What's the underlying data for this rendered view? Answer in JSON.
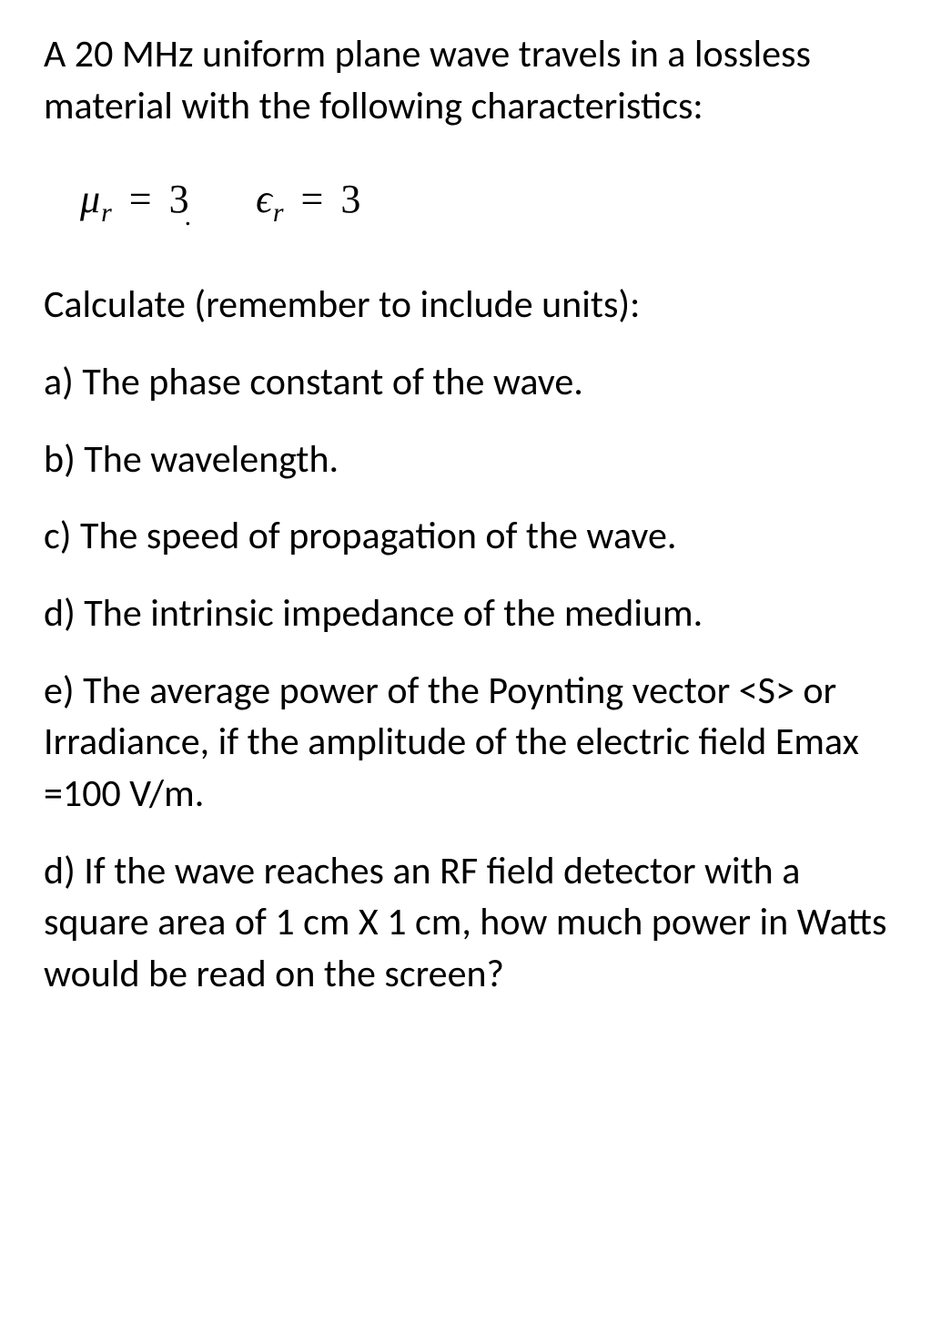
{
  "page": {
    "background_color": "#ffffff",
    "text_color": "#000000",
    "body_font": "Calibri",
    "math_font": "Cambria Math",
    "body_fontsize_pt": 32,
    "math_fontsize_pt": 33
  },
  "intro": "A 20 MHz uniform plane wave travels in a lossless material with the following characteristics:",
  "equation": {
    "mu_sym": "μ",
    "mu_sub": "r",
    "mu_eq": "=",
    "mu_val": "3",
    "eps_sym": "ϵ",
    "eps_sub": "r",
    "eps_eq": "=",
    "eps_val": "3"
  },
  "prompt": "Calculate (remember to include units):",
  "items": {
    "a": {
      "label": "a)  ",
      "text": "The phase constant of the wave."
    },
    "b": {
      "label": "b) ",
      "text": "The wavelength."
    },
    "c": {
      "label": "c)  ",
      "text": "The speed of propagation of the wave."
    },
    "d": {
      "label": "d) ",
      "text": "The intrinsic impedance of the medium."
    },
    "e": {
      "label": "e) ",
      "text": "The average power of the Poynting vector <S> or Irradiance, if the amplitude of the electric field Emax =100 V/m."
    },
    "f": {
      "label": "d)  ",
      "text": "If the wave reaches an RF field detector with a square area of 1 cm X 1 cm, how much power in Watts would be read on the screen?"
    }
  }
}
